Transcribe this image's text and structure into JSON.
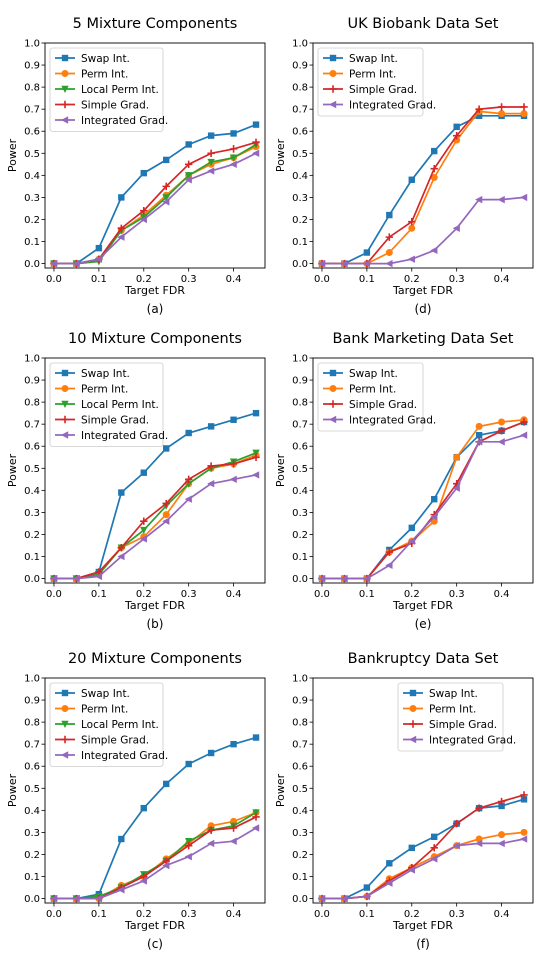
{
  "chart_data": [
    {
      "type": "line",
      "title": "5 Mixture Components",
      "panel_label": "(a)",
      "xlabel": "Target FDR",
      "ylabel": "Power",
      "xlim": [
        -0.02,
        0.47
      ],
      "ylim": [
        -0.02,
        1.0
      ],
      "xticks": [
        "0.0",
        "0.1",
        "0.2",
        "0.3",
        "0.4"
      ],
      "yticks": [
        "0.0",
        "0.1",
        "0.2",
        "0.3",
        "0.4",
        "0.5",
        "0.6",
        "0.7",
        "0.8",
        "0.9",
        "1.0"
      ],
      "legend": "top-left",
      "grid": false,
      "x": [
        0.0,
        0.05,
        0.1,
        0.15,
        0.2,
        0.25,
        0.3,
        0.35,
        0.4,
        0.45
      ],
      "series": [
        {
          "name": "Swap Int.",
          "color": "#1f77b4",
          "marker": "square",
          "values": [
            0.0,
            0.0,
            0.07,
            0.3,
            0.41,
            0.47,
            0.54,
            0.58,
            0.59,
            0.63
          ]
        },
        {
          "name": "Perm Int.",
          "color": "#ff7f0e",
          "marker": "circle",
          "values": [
            0.0,
            0.0,
            0.02,
            0.15,
            0.22,
            0.31,
            0.4,
            0.45,
            0.48,
            0.53
          ]
        },
        {
          "name": "Local Perm Int.",
          "color": "#2ca02c",
          "marker": "triangle-down",
          "values": [
            0.0,
            0.0,
            0.01,
            0.15,
            0.21,
            0.3,
            0.4,
            0.46,
            0.48,
            0.54
          ]
        },
        {
          "name": "Simple Grad.",
          "color": "#d62728",
          "marker": "plus",
          "values": [
            0.0,
            0.0,
            0.02,
            0.16,
            0.24,
            0.35,
            0.45,
            0.5,
            0.52,
            0.55
          ]
        },
        {
          "name": "Integrated Grad.",
          "color": "#9467bd",
          "marker": "triangle-left",
          "values": [
            0.0,
            0.0,
            0.02,
            0.12,
            0.2,
            0.28,
            0.38,
            0.42,
            0.45,
            0.5
          ]
        }
      ]
    },
    {
      "type": "line",
      "title": "UK Biobank Data Set",
      "panel_label": "(d)",
      "xlabel": "Target FDR",
      "ylabel": "Power",
      "xlim": [
        -0.02,
        0.47
      ],
      "ylim": [
        -0.02,
        1.0
      ],
      "xticks": [
        "0.0",
        "0.1",
        "0.2",
        "0.3",
        "0.4"
      ],
      "yticks": [
        "0.0",
        "0.1",
        "0.2",
        "0.3",
        "0.4",
        "0.5",
        "0.6",
        "0.7",
        "0.8",
        "0.9",
        "1.0"
      ],
      "legend": "top-left",
      "grid": false,
      "x": [
        0.0,
        0.05,
        0.1,
        0.15,
        0.2,
        0.25,
        0.3,
        0.35,
        0.4,
        0.45
      ],
      "series": [
        {
          "name": "Swap Int.",
          "color": "#1f77b4",
          "marker": "square",
          "values": [
            0.0,
            0.0,
            0.05,
            0.22,
            0.38,
            0.51,
            0.62,
            0.67,
            0.67,
            0.67
          ]
        },
        {
          "name": "Perm Int.",
          "color": "#ff7f0e",
          "marker": "circle",
          "values": [
            0.0,
            0.0,
            0.0,
            0.05,
            0.16,
            0.39,
            0.56,
            0.69,
            0.68,
            0.68
          ]
        },
        {
          "name": "Simple Grad.",
          "color": "#d62728",
          "marker": "plus",
          "values": [
            0.0,
            0.0,
            0.0,
            0.12,
            0.19,
            0.43,
            0.58,
            0.7,
            0.71,
            0.71
          ]
        },
        {
          "name": "Integrated Grad.",
          "color": "#9467bd",
          "marker": "triangle-left",
          "values": [
            0.0,
            0.0,
            0.0,
            0.0,
            0.02,
            0.06,
            0.16,
            0.29,
            0.29,
            0.3
          ]
        }
      ]
    },
    {
      "type": "line",
      "title": "10 Mixture Components",
      "panel_label": "(b)",
      "xlabel": "Target FDR",
      "ylabel": "Power",
      "xlim": [
        -0.02,
        0.47
      ],
      "ylim": [
        -0.02,
        1.0
      ],
      "xticks": [
        "0.0",
        "0.1",
        "0.2",
        "0.3",
        "0.4"
      ],
      "yticks": [
        "0.0",
        "0.1",
        "0.2",
        "0.3",
        "0.4",
        "0.5",
        "0.6",
        "0.7",
        "0.8",
        "0.9",
        "1.0"
      ],
      "legend": "top-left",
      "grid": false,
      "x": [
        0.0,
        0.05,
        0.1,
        0.15,
        0.2,
        0.25,
        0.3,
        0.35,
        0.4,
        0.45
      ],
      "series": [
        {
          "name": "Swap Int.",
          "color": "#1f77b4",
          "marker": "square",
          "values": [
            0.0,
            0.0,
            0.03,
            0.39,
            0.48,
            0.59,
            0.66,
            0.69,
            0.72,
            0.75
          ]
        },
        {
          "name": "Perm Int.",
          "color": "#ff7f0e",
          "marker": "circle",
          "values": [
            0.0,
            0.0,
            0.02,
            0.14,
            0.19,
            0.29,
            0.43,
            0.5,
            0.52,
            0.56
          ]
        },
        {
          "name": "Local Perm Int.",
          "color": "#2ca02c",
          "marker": "triangle-down",
          "values": [
            0.0,
            0.0,
            0.02,
            0.14,
            0.22,
            0.33,
            0.43,
            0.5,
            0.53,
            0.57
          ]
        },
        {
          "name": "Simple Grad.",
          "color": "#d62728",
          "marker": "plus",
          "values": [
            0.0,
            0.0,
            0.03,
            0.14,
            0.26,
            0.34,
            0.45,
            0.51,
            0.52,
            0.55
          ]
        },
        {
          "name": "Integrated Grad.",
          "color": "#9467bd",
          "marker": "triangle-left",
          "values": [
            0.0,
            0.0,
            0.01,
            0.1,
            0.18,
            0.26,
            0.36,
            0.43,
            0.45,
            0.47
          ]
        }
      ]
    },
    {
      "type": "line",
      "title": "Bank Marketing Data Set",
      "panel_label": "(e)",
      "xlabel": "Target FDR",
      "ylabel": "Power",
      "xlim": [
        -0.02,
        0.47
      ],
      "ylim": [
        -0.02,
        1.0
      ],
      "xticks": [
        "0.0",
        "0.1",
        "0.2",
        "0.3",
        "0.4"
      ],
      "yticks": [
        "0.0",
        "0.1",
        "0.2",
        "0.3",
        "0.4",
        "0.5",
        "0.6",
        "0.7",
        "0.8",
        "0.9",
        "1.0"
      ],
      "legend": "top-left",
      "grid": false,
      "x": [
        0.0,
        0.05,
        0.1,
        0.15,
        0.2,
        0.25,
        0.3,
        0.35,
        0.4,
        0.45
      ],
      "series": [
        {
          "name": "Swap Int.",
          "color": "#1f77b4",
          "marker": "square",
          "values": [
            0.0,
            0.0,
            0.0,
            0.13,
            0.23,
            0.36,
            0.55,
            0.65,
            0.67,
            0.71
          ]
        },
        {
          "name": "Perm Int.",
          "color": "#ff7f0e",
          "marker": "circle",
          "values": [
            0.0,
            0.0,
            0.0,
            0.12,
            0.17,
            0.26,
            0.55,
            0.69,
            0.71,
            0.72
          ]
        },
        {
          "name": "Simple Grad.",
          "color": "#d62728",
          "marker": "plus",
          "values": [
            0.0,
            0.0,
            0.0,
            0.12,
            0.16,
            0.29,
            0.43,
            0.62,
            0.67,
            0.71
          ]
        },
        {
          "name": "Integrated Grad.",
          "color": "#9467bd",
          "marker": "triangle-left",
          "values": [
            0.0,
            0.0,
            0.0,
            0.06,
            0.17,
            0.28,
            0.41,
            0.62,
            0.62,
            0.65
          ]
        }
      ]
    },
    {
      "type": "line",
      "title": "20 Mixture Components",
      "panel_label": "(c)",
      "xlabel": "Target FDR",
      "ylabel": "Power",
      "xlim": [
        -0.02,
        0.47
      ],
      "ylim": [
        -0.02,
        1.0
      ],
      "xticks": [
        "0.0",
        "0.1",
        "0.2",
        "0.3",
        "0.4"
      ],
      "yticks": [
        "0.0",
        "0.1",
        "0.2",
        "0.3",
        "0.4",
        "0.5",
        "0.6",
        "0.7",
        "0.8",
        "0.9",
        "1.0"
      ],
      "legend": "top-left",
      "grid": false,
      "x": [
        0.0,
        0.05,
        0.1,
        0.15,
        0.2,
        0.25,
        0.3,
        0.35,
        0.4,
        0.45
      ],
      "series": [
        {
          "name": "Swap Int.",
          "color": "#1f77b4",
          "marker": "square",
          "values": [
            0.0,
            0.0,
            0.02,
            0.27,
            0.41,
            0.52,
            0.61,
            0.66,
            0.7,
            0.73
          ]
        },
        {
          "name": "Perm Int.",
          "color": "#ff7f0e",
          "marker": "circle",
          "values": [
            0.0,
            0.0,
            0.0,
            0.06,
            0.1,
            0.18,
            0.25,
            0.33,
            0.35,
            0.39
          ]
        },
        {
          "name": "Local Perm Int.",
          "color": "#2ca02c",
          "marker": "triangle-down",
          "values": [
            0.0,
            0.0,
            0.01,
            0.05,
            0.11,
            0.17,
            0.26,
            0.31,
            0.33,
            0.39
          ]
        },
        {
          "name": "Simple Grad.",
          "color": "#d62728",
          "marker": "plus",
          "values": [
            0.0,
            0.0,
            0.0,
            0.05,
            0.1,
            0.17,
            0.24,
            0.31,
            0.32,
            0.37
          ]
        },
        {
          "name": "Integrated Grad.",
          "color": "#9467bd",
          "marker": "triangle-left",
          "values": [
            0.0,
            0.0,
            0.0,
            0.04,
            0.08,
            0.15,
            0.19,
            0.25,
            0.26,
            0.32
          ]
        }
      ]
    },
    {
      "type": "line",
      "title": "Bankruptcy Data Set",
      "panel_label": "(f)",
      "xlabel": "Target FDR",
      "ylabel": "Power",
      "xlim": [
        -0.02,
        0.47
      ],
      "ylim": [
        -0.02,
        1.0
      ],
      "xticks": [
        "0.0",
        "0.1",
        "0.2",
        "0.3",
        "0.4"
      ],
      "yticks": [
        "0.0",
        "0.1",
        "0.2",
        "0.3",
        "0.4",
        "0.5",
        "0.6",
        "0.7",
        "0.8",
        "0.9",
        "1.0"
      ],
      "legend": "upper-center",
      "grid": false,
      "x": [
        0.0,
        0.05,
        0.1,
        0.15,
        0.2,
        0.25,
        0.3,
        0.35,
        0.4,
        0.45
      ],
      "series": [
        {
          "name": "Swap Int.",
          "color": "#1f77b4",
          "marker": "square",
          "values": [
            0.0,
            0.0,
            0.05,
            0.16,
            0.23,
            0.28,
            0.34,
            0.41,
            0.42,
            0.45
          ]
        },
        {
          "name": "Perm Int.",
          "color": "#ff7f0e",
          "marker": "circle",
          "values": [
            0.0,
            0.0,
            0.01,
            0.09,
            0.14,
            0.19,
            0.24,
            0.27,
            0.29,
            0.3
          ]
        },
        {
          "name": "Simple Grad.",
          "color": "#d62728",
          "marker": "plus",
          "values": [
            0.0,
            0.0,
            0.01,
            0.08,
            0.14,
            0.23,
            0.34,
            0.41,
            0.44,
            0.47
          ]
        },
        {
          "name": "Integrated Grad.",
          "color": "#9467bd",
          "marker": "triangle-left",
          "values": [
            0.0,
            0.0,
            0.01,
            0.07,
            0.13,
            0.18,
            0.24,
            0.25,
            0.25,
            0.27
          ]
        }
      ]
    }
  ]
}
